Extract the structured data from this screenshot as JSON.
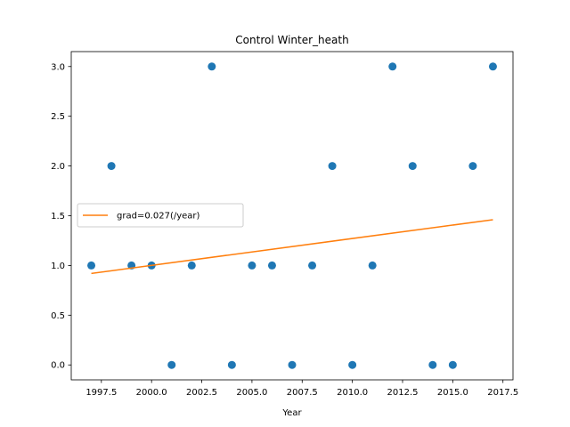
{
  "chart_data": {
    "type": "scatter",
    "title": "Control Winter_heath",
    "xlabel": "Year",
    "ylabel": "",
    "xlim": [
      1996.0,
      2018.0
    ],
    "ylim": [
      -0.15,
      3.15
    ],
    "xticks": [
      1997.5,
      2000.0,
      2002.5,
      2005.0,
      2007.5,
      2010.0,
      2012.5,
      2015.0,
      2017.5
    ],
    "xtick_labels": [
      "1997.5",
      "2000.0",
      "2002.5",
      "2005.0",
      "2007.5",
      "2010.0",
      "2012.5",
      "2015.0",
      "2017.5"
    ],
    "yticks": [
      0.0,
      0.5,
      1.0,
      1.5,
      2.0,
      2.5,
      3.0
    ],
    "ytick_labels": [
      "0.0",
      "0.5",
      "1.0",
      "1.5",
      "2.0",
      "2.5",
      "3.0"
    ],
    "grid": false,
    "legend_placement": "center-left",
    "series": [
      {
        "kind": "scatter",
        "color": "#1f77b4",
        "x": [
          1997,
          1998,
          1999,
          2000,
          2001,
          2002,
          2003,
          2004,
          2005,
          2006,
          2007,
          2008,
          2009,
          2010,
          2011,
          2012,
          2013,
          2014,
          2015,
          2016,
          2017
        ],
        "y": [
          1,
          2,
          1,
          1,
          0,
          1,
          3,
          0,
          1,
          1,
          0,
          1,
          2,
          0,
          1,
          3,
          2,
          0,
          0,
          2,
          3
        ]
      },
      {
        "kind": "line",
        "name": "grad=0.027(/year)",
        "color": "#ff7f0e",
        "x": [
          1997,
          2017
        ],
        "y": [
          0.92,
          1.46
        ]
      }
    ]
  }
}
